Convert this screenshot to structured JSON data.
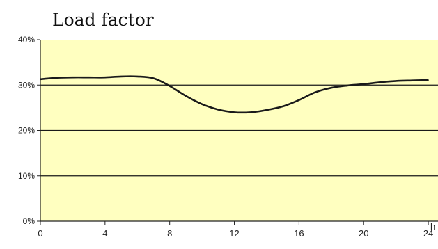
{
  "chart_data": {
    "type": "line",
    "title": "Load factor",
    "xlabel": "h",
    "ylabel": "",
    "xlim": [
      0,
      24
    ],
    "ylim": [
      0,
      40
    ],
    "x_ticks": [
      "0",
      "4",
      "8",
      "12",
      "16",
      "20",
      "24"
    ],
    "y_ticks": [
      "0%",
      "10%",
      "20%",
      "30%",
      "40%"
    ],
    "grid": true,
    "legend": "none",
    "series": [
      {
        "x": [
          0,
          1,
          2,
          3,
          4,
          5,
          6,
          7,
          8,
          9,
          10,
          11,
          12,
          13,
          14,
          15,
          16,
          17,
          18,
          19,
          20,
          21,
          22,
          23,
          24
        ],
        "values": [
          31.3,
          31.6,
          31.7,
          31.7,
          31.7,
          31.9,
          31.9,
          31.5,
          29.8,
          27.6,
          25.8,
          24.6,
          24.0,
          24.0,
          24.5,
          25.3,
          26.7,
          28.4,
          29.4,
          29.9,
          30.2,
          30.6,
          30.9,
          31.0,
          31.1
        ]
      }
    ],
    "colors": {
      "plot_background": "#ffffc0",
      "line": "#1a1a1a",
      "grid": "#1a1a1a"
    }
  }
}
